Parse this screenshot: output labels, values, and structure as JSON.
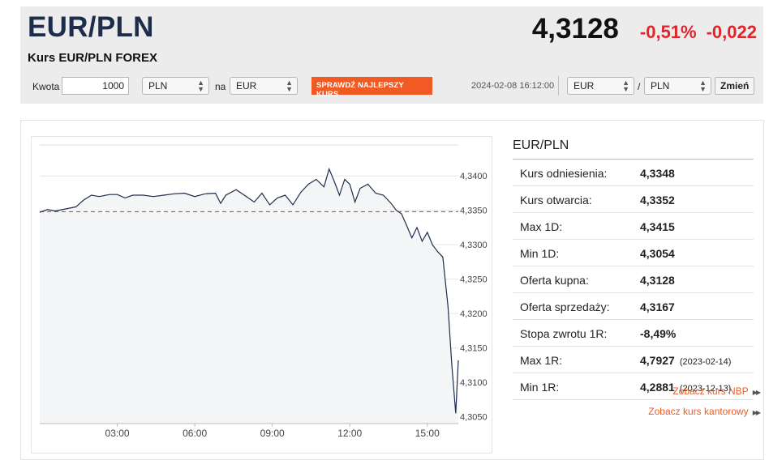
{
  "header": {
    "title": "EUR/PLN",
    "subtitle": "Kurs EUR/PLN FOREX",
    "rate": "4,3128",
    "change_pct": "-0,51%",
    "change_abs": "-0,022"
  },
  "converter": {
    "amount_label": "Kwota",
    "amount_value": "1000",
    "from_currency": "PLN",
    "to_label": "na",
    "to_currency": "EUR",
    "best_rate_button": "SPRAWDŹ NAJLEPSZY KURS",
    "timestamp": "2024-02-08 16:12:00",
    "pair_base": "EUR",
    "pair_separator": "/",
    "pair_quote": "PLN",
    "change_button": "Zmień"
  },
  "chart_data": {
    "type": "line",
    "ylim": [
      4.304,
      4.3445
    ],
    "y_ticks": [
      "4,3400",
      "4,3350",
      "4,3300",
      "4,3250",
      "4,3200",
      "4,3150",
      "4,3100",
      "4,3050"
    ],
    "y_tick_values": [
      4.34,
      4.335,
      4.33,
      4.325,
      4.32,
      4.315,
      4.31,
      4.305
    ],
    "x_ticks": [
      "03:00",
      "06:00",
      "09:00",
      "12:00",
      "15:00"
    ],
    "x_tick_values": [
      3,
      6,
      9,
      12,
      15
    ],
    "xlim": [
      0,
      16.2
    ],
    "reference_line": 4.3348,
    "series": [
      {
        "x": [
          0,
          0.3,
          0.6,
          1.0,
          1.4,
          1.7,
          2.0,
          2.3,
          2.7,
          3.0,
          3.3,
          3.6,
          4.0,
          4.4,
          4.8,
          5.2,
          5.6,
          6.0,
          6.4,
          6.8,
          7.0,
          7.2,
          7.6,
          8.0,
          8.3,
          8.6,
          8.9,
          9.2,
          9.5,
          9.8,
          10.1,
          10.4,
          10.7,
          11.0,
          11.2,
          11.4,
          11.6,
          11.8,
          12.0,
          12.2,
          12.4,
          12.7,
          13.0,
          13.3,
          13.6,
          13.8,
          14.0,
          14.2,
          14.4,
          14.6,
          14.8,
          15.0,
          15.2,
          15.4,
          15.6,
          15.8,
          15.95,
          16.1,
          16.2
        ],
        "y": [
          4.3347,
          4.3351,
          4.3349,
          4.3352,
          4.3355,
          4.3365,
          4.3372,
          4.337,
          4.3373,
          4.3373,
          4.3368,
          4.3372,
          4.3372,
          4.337,
          4.3372,
          4.3374,
          4.3375,
          4.337,
          4.3374,
          4.3375,
          4.336,
          4.3372,
          4.338,
          4.337,
          4.3362,
          4.3375,
          4.3358,
          4.3368,
          4.3372,
          4.3358,
          4.3376,
          4.3388,
          4.3395,
          4.3384,
          4.341,
          4.3392,
          4.3372,
          4.3395,
          4.3388,
          4.3362,
          4.3382,
          4.3388,
          4.3375,
          4.3372,
          4.336,
          4.335,
          4.3345,
          4.3328,
          4.331,
          4.3325,
          4.3305,
          4.3318,
          4.33,
          4.329,
          4.3282,
          4.321,
          4.3125,
          4.3055,
          4.3132
        ]
      }
    ]
  },
  "stats": {
    "title": "EUR/PLN",
    "rows": [
      {
        "label": "Kurs odniesienia:",
        "value": "4,3348",
        "date": ""
      },
      {
        "label": "Kurs otwarcia:",
        "value": "4,3352",
        "date": ""
      },
      {
        "label": "Max 1D:",
        "value": "4,3415",
        "date": ""
      },
      {
        "label": "Min 1D:",
        "value": "4,3054",
        "date": ""
      },
      {
        "label": "Oferta kupna:",
        "value": "4,3128",
        "date": ""
      },
      {
        "label": "Oferta sprzedaży:",
        "value": "4,3167",
        "date": ""
      },
      {
        "label": "Stopa zwrotu 1R:",
        "value": "-8,49%",
        "date": ""
      },
      {
        "label": "Max 1R:",
        "value": "4,7927",
        "date": "(2023-02-14)"
      },
      {
        "label": "Min 1R:",
        "value": "4,2881",
        "date": "(2023-12-13)"
      }
    ]
  },
  "links": {
    "nbp": "Zobacz kurs NBP",
    "kantor": "Zobacz kurs kantorowy"
  },
  "colors": {
    "accent": "#f15a22",
    "negative": "#e0242b",
    "title": "#1d2d4b",
    "line": "#1d2d4b",
    "reference_line": "#e0242b",
    "chart_fill": "#f4f5f6"
  }
}
